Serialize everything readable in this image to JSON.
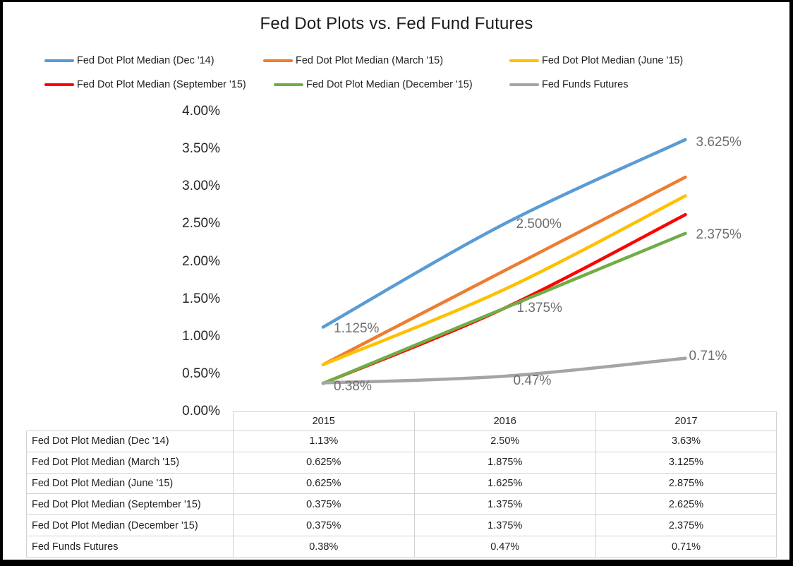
{
  "chart_data": {
    "type": "line",
    "title": "Fed Dot Plots vs. Fed Fund Futures",
    "categories": [
      "2015",
      "2016",
      "2017"
    ],
    "y_ticks": [
      "4.00%",
      "3.50%",
      "3.00%",
      "2.50%",
      "2.00%",
      "1.50%",
      "1.00%",
      "0.50%",
      "0.00%"
    ],
    "ylim": [
      0,
      4
    ],
    "grid": false,
    "legend_position": "top-two-rows",
    "series": [
      {
        "name": "Fed Dot Plot Median (Dec '14)",
        "color": "#5B9BD5",
        "values": [
          1.125,
          2.5,
          3.625
        ],
        "table_values": [
          "1.13%",
          "2.50%",
          "3.63%"
        ]
      },
      {
        "name": "Fed Dot Plot Median (March '15)",
        "color": "#ED7D31",
        "values": [
          0.625,
          1.875,
          3.125
        ],
        "table_values": [
          "0.625%",
          "1.875%",
          "3.125%"
        ]
      },
      {
        "name": "Fed Dot Plot Median (June '15)",
        "color": "#FFC000",
        "values": [
          0.625,
          1.625,
          2.875
        ],
        "table_values": [
          "0.625%",
          "1.625%",
          "2.875%"
        ]
      },
      {
        "name": "Fed Dot Plot Median (September '15)",
        "color": "#FF0000",
        "values": [
          0.375,
          1.375,
          2.625
        ],
        "table_values": [
          "0.375%",
          "1.375%",
          "2.625%"
        ]
      },
      {
        "name": "Fed Dot Plot Median (December '15)",
        "color": "#70AD47",
        "values": [
          0.375,
          1.375,
          2.375
        ],
        "table_values": [
          "0.375%",
          "1.375%",
          "2.375%"
        ]
      },
      {
        "name": "Fed Funds Futures",
        "color": "#A5A5A5",
        "values": [
          0.38,
          0.47,
          0.71
        ],
        "table_values": [
          "0.38%",
          "0.47%",
          "0.71%"
        ]
      }
    ],
    "data_labels": [
      {
        "text": "1.125%",
        "series": 0,
        "point": 0
      },
      {
        "text": "2.500%",
        "series": 0,
        "point": 1
      },
      {
        "text": "3.625%",
        "series": 0,
        "point": 2
      },
      {
        "text": "1.375%",
        "series": 4,
        "point": 1
      },
      {
        "text": "2.375%",
        "series": 4,
        "point": 2
      },
      {
        "text": "0.38%",
        "series": 5,
        "point": 0
      },
      {
        "text": "0.47%",
        "series": 5,
        "point": 1
      },
      {
        "text": "0.71%",
        "series": 5,
        "point": 2
      }
    ]
  }
}
